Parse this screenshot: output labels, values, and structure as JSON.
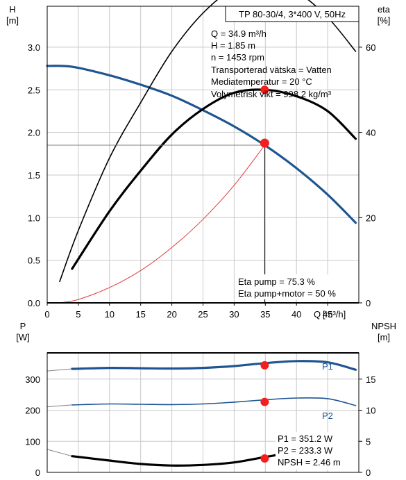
{
  "chart_data": [
    {
      "type": "line",
      "title": "TP 80-30/4, 3*400 V, 50Hz",
      "xlabel": "Q [m³/h]",
      "x_axis_label": "Q",
      "x_axis_unit": "[m³/h]",
      "ylabel": "H",
      "ylabel_unit": "[m]",
      "y2label": "eta",
      "y2label_unit": "[%]",
      "xlim": [
        0,
        50
      ],
      "ylim": [
        0,
        3.0
      ],
      "y2lim": [
        0,
        120
      ],
      "xticks": [
        "0",
        "5",
        "10",
        "15",
        "20",
        "25",
        "30",
        "35",
        "40",
        "45"
      ],
      "yticks": [
        "0.0",
        "0.5",
        "1.0",
        "1.5",
        "2.0",
        "2.5",
        "3.0"
      ],
      "y2ticks": [
        "0",
        "20",
        "40",
        "60",
        "80",
        "100"
      ],
      "grid": true,
      "info_lines": [
        "Q = 34.9 m³/h",
        "H = 1.85 m",
        "n = 1453 rpm",
        "Transporterad vätska = Vatten",
        "Mediatemperatur = 20 °C",
        "Volymetrisk vikt = 998.2 kg/m³"
      ],
      "annotations": [
        "Eta pump = 75.3 %",
        "Eta pump+motor = 50 %"
      ],
      "duty_point": {
        "q": 34.9,
        "h": 1.85,
        "eta_pump": 75.3,
        "eta_total": 50
      },
      "series": [
        {
          "key": "H",
          "axis": "left",
          "color": "#1f5591",
          "x": [
            0,
            4,
            10,
            15,
            20,
            25,
            30,
            34.9,
            40,
            45,
            49.5
          ],
          "y": [
            2.78,
            2.77,
            2.67,
            2.56,
            2.43,
            2.26,
            2.07,
            1.85,
            1.58,
            1.27,
            0.94
          ]
        },
        {
          "key": "eta_pump",
          "axis": "right",
          "color": "#000000",
          "x": [
            2,
            5,
            10,
            15,
            20,
            25,
            30,
            35,
            40,
            45,
            49.5
          ],
          "y": [
            5,
            17,
            34,
            47,
            59,
            68,
            73.8,
            75.3,
            73,
            67,
            59
          ]
        },
        {
          "key": "eta_total",
          "axis": "right",
          "color": "#000000",
          "x": [
            4,
            10,
            15,
            20,
            25,
            30,
            35,
            40,
            45,
            49.5
          ],
          "y": [
            8,
            21.5,
            31,
            39.5,
            45.5,
            49.3,
            50,
            48.5,
            45,
            38.5
          ]
        },
        {
          "key": "system_curve",
          "axis": "left",
          "color": "#e23b3b",
          "x": [
            2,
            5,
            10,
            15,
            20,
            25,
            30,
            34.9
          ],
          "y": [
            0.0,
            0.04,
            0.18,
            0.38,
            0.65,
            0.98,
            1.38,
            1.85
          ]
        }
      ]
    },
    {
      "type": "line",
      "ylabel": "P",
      "ylabel_unit": "[W]",
      "y2label": "NPSH",
      "y2label_unit": "[m]",
      "xlim": [
        0,
        50
      ],
      "ylim": [
        0,
        400
      ],
      "y2lim": [
        0,
        20
      ],
      "yticks": [
        "0",
        "100",
        "200",
        "300"
      ],
      "y2ticks": [
        "0",
        "5",
        "10",
        "15"
      ],
      "grid": true,
      "annotations": [
        "P1 = 351.2 W",
        "P2 = 233.3 W",
        "NPSH = 2.46 m"
      ],
      "duty_point": {
        "q": 34.9,
        "p1": 351.2,
        "p2": 233.3,
        "npsh": 2.46
      },
      "series": [
        {
          "name": "P1",
          "axis": "left",
          "color": "#1f5591",
          "x": [
            0,
            4,
            10,
            15,
            20,
            25,
            30,
            34.9,
            40,
            45,
            49.5
          ],
          "y": [
            326,
            333,
            336,
            335,
            334,
            336,
            342,
            351.2,
            358,
            354,
            330
          ]
        },
        {
          "name": "P2",
          "axis": "left",
          "color": "#1f5591",
          "x": [
            0,
            4,
            10,
            15,
            20,
            25,
            30,
            34.9,
            40,
            45,
            49.5
          ],
          "y": [
            211,
            217,
            220,
            219,
            218,
            220,
            226,
            233.3,
            239,
            237,
            215
          ]
        },
        {
          "key": "NPSH",
          "axis": "right",
          "color": "#000000",
          "x": [
            0,
            4,
            10,
            15,
            20,
            25,
            30,
            34.9,
            40,
            45
          ],
          "y": [
            3.7,
            2.6,
            1.9,
            1.35,
            1.1,
            1.2,
            1.6,
            2.46,
            3.35,
            4.3
          ]
        }
      ]
    }
  ]
}
